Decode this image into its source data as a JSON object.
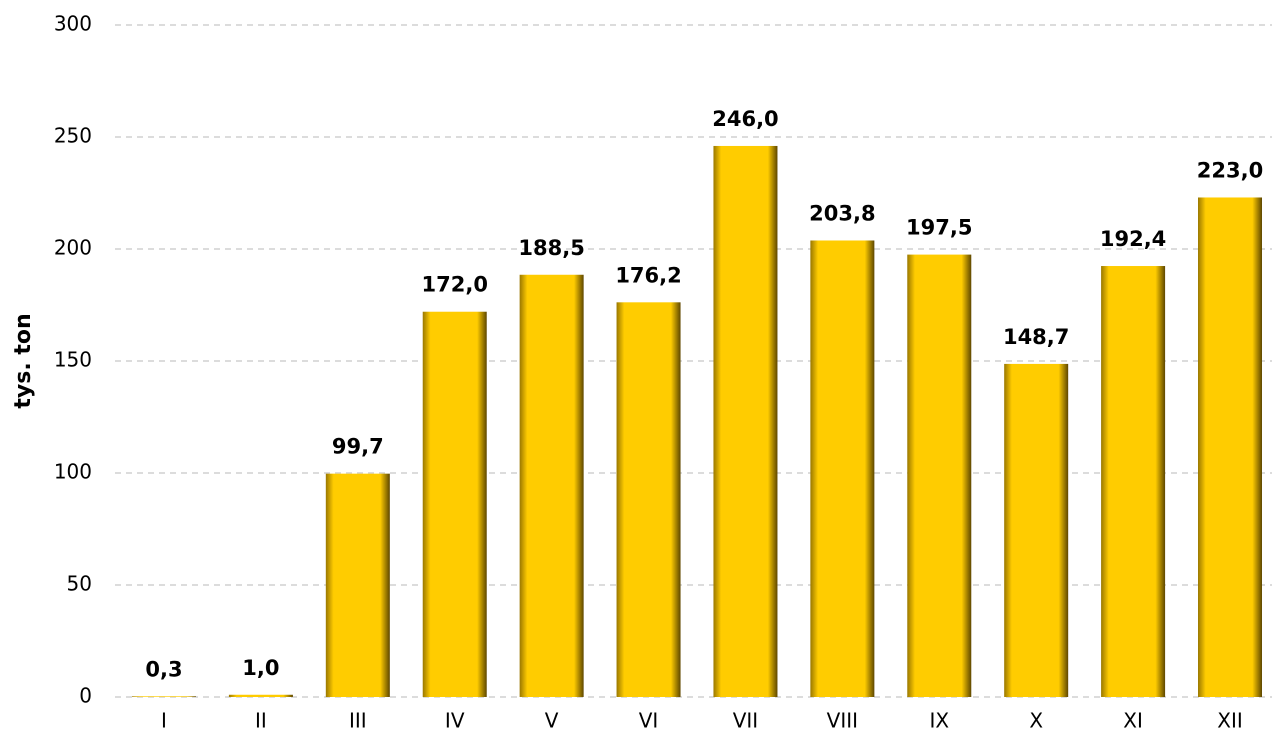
{
  "chart_data": {
    "type": "bar",
    "y_label": "tys. ton",
    "categories": [
      "I",
      "II",
      "III",
      "IV",
      "V",
      "VI",
      "VII",
      "VIII",
      "IX",
      "X",
      "XI",
      "XII"
    ],
    "values": [
      0.3,
      1.0,
      99.7,
      172.0,
      188.5,
      176.2,
      246.0,
      203.8,
      197.5,
      148.7,
      192.4,
      223.0
    ],
    "value_labels": [
      "0,3",
      "1,0",
      "99,7",
      "172,0",
      "188,5",
      "176,2",
      "246,0",
      "203,8",
      "197,5",
      "148,7",
      "192,4",
      "223,0"
    ],
    "color": "#ffcc00",
    "ylim": [
      0,
      300
    ],
    "yticks": [
      0,
      50,
      100,
      150,
      200,
      250,
      300
    ],
    "grid": true
  }
}
